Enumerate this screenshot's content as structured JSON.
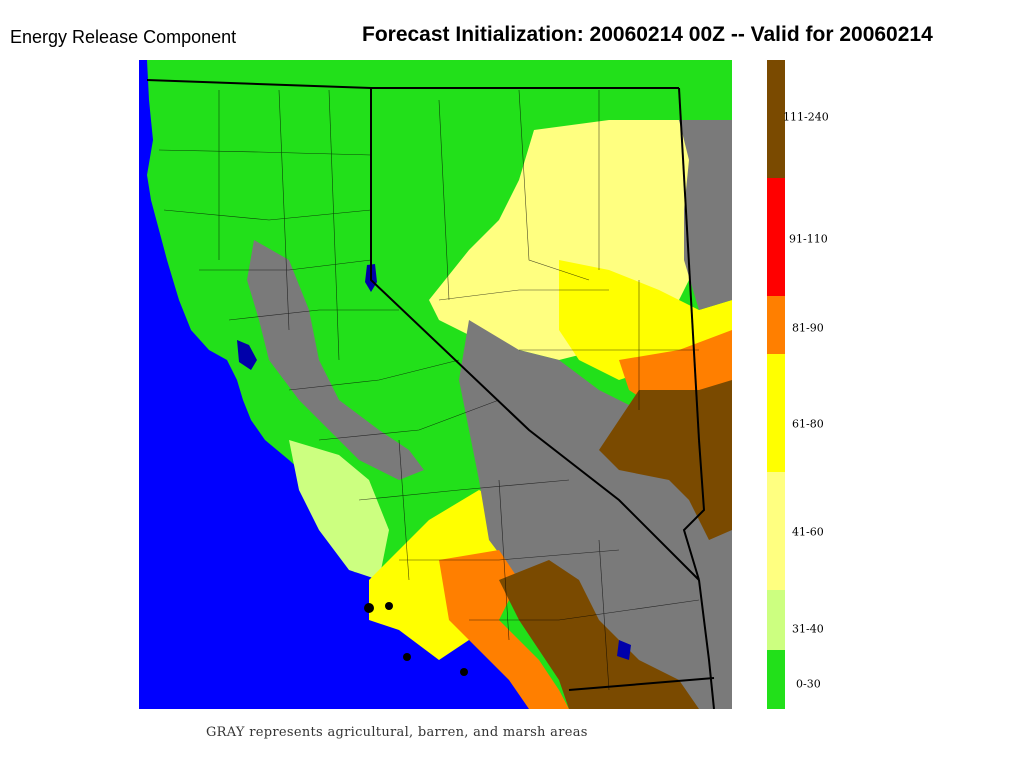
{
  "header": {
    "product_label": "Energy Release Component",
    "forecast_title": "Forecast Initialization: 20060214 00Z -- Valid for 20060214"
  },
  "map": {
    "region_name": "california-nevada-region",
    "ocean_color": "#0000ff",
    "gray_color": "#7a7a7a"
  },
  "legend": {
    "classes": [
      {
        "label": "111-240",
        "color": "#7a4a00"
      },
      {
        "label": "91-110",
        "color": "#ff0000"
      },
      {
        "label": "81-90",
        "color": "#ff7f00"
      },
      {
        "label": "61-80",
        "color": "#ffff00"
      },
      {
        "label": "41-60",
        "color": "#ffff80"
      },
      {
        "label": "31-40",
        "color": "#ccff80"
      },
      {
        "label": "0-30",
        "color": "#22e01a"
      }
    ]
  },
  "footnote": "GRAY represents agricultural, barren, and marsh areas"
}
